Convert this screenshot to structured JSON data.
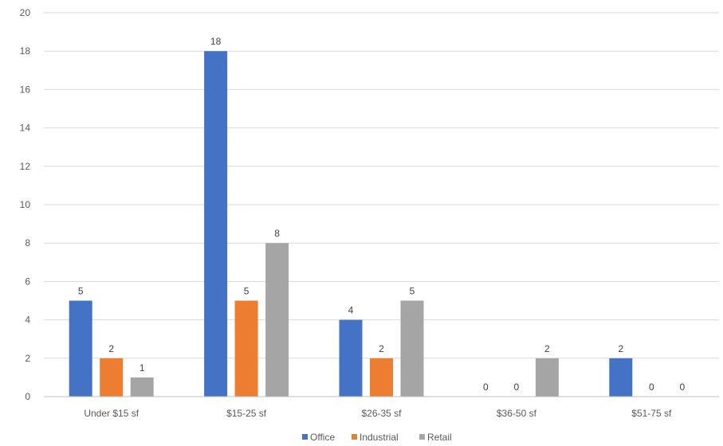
{
  "chart_data": {
    "type": "bar",
    "title": "",
    "xlabel": "",
    "ylabel": "",
    "categories": [
      "Under $15 sf",
      "$15-25 sf",
      "$26-35 sf",
      "$36-50 sf",
      "$51-75 sf"
    ],
    "series": [
      {
        "name": "Office",
        "color": "#4472C4",
        "values": [
          5,
          18,
          4,
          0,
          2
        ]
      },
      {
        "name": "Industrial",
        "color": "#ED7D31",
        "values": [
          2,
          5,
          2,
          0,
          0
        ]
      },
      {
        "name": "Retail",
        "color": "#A5A5A5",
        "values": [
          1,
          8,
          5,
          2,
          0
        ]
      }
    ],
    "ylim": [
      0,
      20
    ],
    "yticks": [
      0,
      2,
      4,
      6,
      8,
      10,
      12,
      14,
      16,
      18,
      20
    ],
    "grid": true,
    "legend": "bottom-center"
  }
}
